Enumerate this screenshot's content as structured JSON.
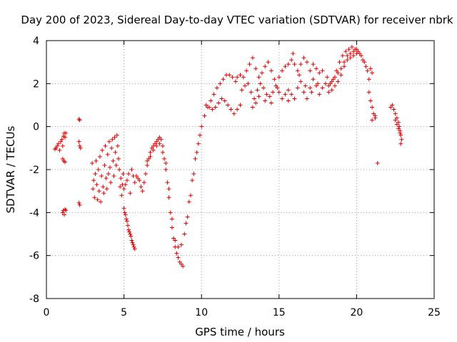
{
  "chart_data": {
    "type": "scatter",
    "title": "Day 200 of 2023, Sidereal Day-to-day VTEC variation (SDTVAR) for receiver nbrk",
    "xlabel": "GPS time / hours",
    "ylabel": "SDTVAR / TECUs",
    "xlim": [
      0,
      25
    ],
    "ylim": [
      -8,
      4
    ],
    "xticks": [
      0,
      5,
      10,
      15,
      20,
      25
    ],
    "yticks": [
      -8,
      -6,
      -4,
      -2,
      0,
      2,
      4
    ],
    "grid": true,
    "marker": "+",
    "series_color": "#e00000",
    "series": [
      {
        "name": "SDTVAR",
        "points": [
          [
            0.55,
            -1.05
          ],
          [
            0.62,
            -1.0
          ],
          [
            0.7,
            -0.9
          ],
          [
            0.78,
            -0.8
          ],
          [
            0.85,
            -1.1
          ],
          [
            0.92,
            -0.7
          ],
          [
            1.0,
            -0.6
          ],
          [
            1.05,
            -0.9
          ],
          [
            1.1,
            -0.45
          ],
          [
            1.15,
            -0.3
          ],
          [
            1.2,
            -0.5
          ],
          [
            1.25,
            -0.3
          ],
          [
            1.05,
            -1.5
          ],
          [
            1.12,
            -1.6
          ],
          [
            1.2,
            -1.65
          ],
          [
            1.05,
            -4.0
          ],
          [
            1.1,
            -3.9
          ],
          [
            1.15,
            -4.1
          ],
          [
            1.2,
            -3.85
          ],
          [
            1.25,
            -3.9
          ],
          [
            2.1,
            0.35
          ],
          [
            2.15,
            0.3
          ],
          [
            2.1,
            -0.7
          ],
          [
            2.15,
            -0.9
          ],
          [
            2.2,
            -1.0
          ],
          [
            2.1,
            -3.55
          ],
          [
            2.15,
            -3.65
          ],
          [
            2.95,
            -1.7
          ],
          [
            3.0,
            -2.9
          ],
          [
            3.05,
            -2.5
          ],
          [
            3.1,
            -3.3
          ],
          [
            3.15,
            -2.2
          ],
          [
            3.2,
            -1.6
          ],
          [
            3.25,
            -2.7
          ],
          [
            3.3,
            -3.4
          ],
          [
            3.35,
            -2.0
          ],
          [
            3.4,
            -3.0
          ],
          [
            3.45,
            -1.4
          ],
          [
            3.5,
            -3.5
          ],
          [
            3.55,
            -2.3
          ],
          [
            3.6,
            -1.1
          ],
          [
            3.65,
            -2.8
          ],
          [
            3.7,
            -3.1
          ],
          [
            3.75,
            -1.8
          ],
          [
            3.8,
            -0.9
          ],
          [
            3.85,
            -2.4
          ],
          [
            3.9,
            -2.9
          ],
          [
            3.95,
            -1.3
          ],
          [
            4.0,
            -2.2
          ],
          [
            4.05,
            -0.7
          ],
          [
            4.1,
            -1.9
          ],
          [
            4.15,
            -2.6
          ],
          [
            4.2,
            -1.0
          ],
          [
            4.25,
            -0.6
          ],
          [
            4.3,
            -1.6
          ],
          [
            4.35,
            -2.3
          ],
          [
            4.4,
            -0.5
          ],
          [
            4.45,
            -1.2
          ],
          [
            4.5,
            -1.8
          ],
          [
            4.55,
            -0.4
          ],
          [
            4.6,
            -0.9
          ],
          [
            4.65,
            -1.5
          ],
          [
            4.7,
            -2.0
          ],
          [
            4.75,
            -2.8
          ],
          [
            4.8,
            -2.4
          ],
          [
            4.85,
            -3.2
          ],
          [
            4.9,
            -2.7
          ],
          [
            4.95,
            -2.2
          ],
          [
            5.0,
            -3.8
          ],
          [
            5.05,
            -4.0
          ],
          [
            5.1,
            -4.1
          ],
          [
            5.15,
            -4.3
          ],
          [
            5.2,
            -4.4
          ],
          [
            5.25,
            -4.6
          ],
          [
            5.3,
            -4.8
          ],
          [
            5.35,
            -4.9
          ],
          [
            5.4,
            -5.0
          ],
          [
            5.45,
            -5.1
          ],
          [
            5.5,
            -5.3
          ],
          [
            5.55,
            -5.4
          ],
          [
            5.6,
            -5.5
          ],
          [
            5.65,
            -5.6
          ],
          [
            5.7,
            -5.7
          ],
          [
            5.0,
            -2.9
          ],
          [
            5.1,
            -2.7
          ],
          [
            5.2,
            -2.5
          ],
          [
            5.3,
            -2.2
          ],
          [
            5.4,
            -3.1
          ],
          [
            5.5,
            -2.0
          ],
          [
            5.6,
            -2.3
          ],
          [
            5.7,
            -2.6
          ],
          [
            5.8,
            -2.3
          ],
          [
            5.9,
            -2.4
          ],
          [
            6.0,
            -2.5
          ],
          [
            6.1,
            -2.8
          ],
          [
            6.2,
            -3.0
          ],
          [
            6.3,
            -2.6
          ],
          [
            6.4,
            -2.2
          ],
          [
            6.5,
            -1.8
          ],
          [
            6.6,
            -1.5
          ],
          [
            6.7,
            -1.2
          ],
          [
            6.8,
            -1.0
          ],
          [
            6.9,
            -0.9
          ],
          [
            7.0,
            -0.8
          ],
          [
            7.1,
            -0.7
          ],
          [
            7.2,
            -0.6
          ],
          [
            7.3,
            -0.5
          ],
          [
            7.4,
            -0.6
          ],
          [
            7.5,
            -0.9
          ],
          [
            6.5,
            -1.6
          ],
          [
            6.7,
            -1.4
          ],
          [
            6.9,
            -1.1
          ],
          [
            7.1,
            -0.9
          ],
          [
            7.3,
            -0.8
          ],
          [
            7.5,
            -1.2
          ],
          [
            7.6,
            -1.5
          ],
          [
            7.7,
            -2.0
          ],
          [
            7.8,
            -2.6
          ],
          [
            7.9,
            -3.3
          ],
          [
            8.0,
            -4.0
          ],
          [
            8.1,
            -4.7
          ],
          [
            8.2,
            -5.2
          ],
          [
            8.3,
            -5.6
          ],
          [
            8.4,
            -5.9
          ],
          [
            8.5,
            -6.1
          ],
          [
            8.6,
            -6.3
          ],
          [
            8.7,
            -6.4
          ],
          [
            8.8,
            -6.5
          ],
          [
            7.7,
            -1.7
          ],
          [
            7.9,
            -2.9
          ],
          [
            8.1,
            -4.3
          ],
          [
            8.3,
            -5.3
          ],
          [
            8.5,
            -5.6
          ],
          [
            8.7,
            -5.5
          ],
          [
            8.9,
            -5.0
          ],
          [
            9.1,
            -4.2
          ],
          [
            9.3,
            -3.2
          ],
          [
            9.5,
            -2.2
          ],
          [
            9.7,
            -1.2
          ],
          [
            9.9,
            -0.4
          ],
          [
            9.0,
            -4.5
          ],
          [
            9.2,
            -3.5
          ],
          [
            9.4,
            -2.5
          ],
          [
            9.6,
            -1.5
          ],
          [
            9.8,
            -0.8
          ],
          [
            10.0,
            0.0
          ],
          [
            10.2,
            0.5
          ],
          [
            10.4,
            0.9
          ],
          [
            10.6,
            1.2
          ],
          [
            10.8,
            1.5
          ],
          [
            11.0,
            1.8
          ],
          [
            11.2,
            2.0
          ],
          [
            11.4,
            2.2
          ],
          [
            11.6,
            2.4
          ],
          [
            11.8,
            2.4
          ],
          [
            12.0,
            2.3
          ],
          [
            12.2,
            2.1
          ],
          [
            10.3,
            1.0
          ],
          [
            10.5,
            0.9
          ],
          [
            10.7,
            0.8
          ],
          [
            10.9,
            0.9
          ],
          [
            11.1,
            1.1
          ],
          [
            11.3,
            1.3
          ],
          [
            11.5,
            1.2
          ],
          [
            11.7,
            1.0
          ],
          [
            11.9,
            0.8
          ],
          [
            12.1,
            0.6
          ],
          [
            12.3,
            0.8
          ],
          [
            12.5,
            1.0
          ],
          [
            12.3,
            2.3
          ],
          [
            12.5,
            2.4
          ],
          [
            12.7,
            2.3
          ],
          [
            12.9,
            2.6
          ],
          [
            13.1,
            2.9
          ],
          [
            13.3,
            3.2
          ],
          [
            13.5,
            2.7
          ],
          [
            13.7,
            2.3
          ],
          [
            13.9,
            2.5
          ],
          [
            14.1,
            2.8
          ],
          [
            14.3,
            3.0
          ],
          [
            14.5,
            2.6
          ],
          [
            14.7,
            2.2
          ],
          [
            14.9,
            1.8
          ],
          [
            12.6,
            1.7
          ],
          [
            12.8,
            1.9
          ],
          [
            13.0,
            2.0
          ],
          [
            13.2,
            1.6
          ],
          [
            13.4,
            1.3
          ],
          [
            13.6,
            1.7
          ],
          [
            13.8,
            2.0
          ],
          [
            14.0,
            1.8
          ],
          [
            14.2,
            1.5
          ],
          [
            14.4,
            1.4
          ],
          [
            14.6,
            1.6
          ],
          [
            14.8,
            1.9
          ],
          [
            15.0,
            1.6
          ],
          [
            15.2,
            1.3
          ],
          [
            15.4,
            1.5
          ],
          [
            15.6,
            1.2
          ],
          [
            13.3,
            0.9
          ],
          [
            13.5,
            1.1
          ],
          [
            13.7,
            1.4
          ],
          [
            14.1,
            1.2
          ],
          [
            14.5,
            1.1
          ],
          [
            15.0,
            2.3
          ],
          [
            15.2,
            2.6
          ],
          [
            15.4,
            2.8
          ],
          [
            15.6,
            2.9
          ],
          [
            15.8,
            3.1
          ],
          [
            16.0,
            2.9
          ],
          [
            16.2,
            2.6
          ],
          [
            16.4,
            2.9
          ],
          [
            16.6,
            3.2
          ],
          [
            16.8,
            3.0
          ],
          [
            17.0,
            2.6
          ],
          [
            17.2,
            2.9
          ],
          [
            17.4,
            2.7
          ],
          [
            17.6,
            2.5
          ],
          [
            17.8,
            2.6
          ],
          [
            15.9,
            3.4
          ],
          [
            16.3,
            2.4
          ],
          [
            16.7,
            1.9
          ],
          [
            17.1,
            1.6
          ],
          [
            17.5,
            2.0
          ],
          [
            15.6,
            1.7
          ],
          [
            15.8,
            1.5
          ],
          [
            16.0,
            1.3
          ],
          [
            16.2,
            1.8
          ],
          [
            16.4,
            2.1
          ],
          [
            16.6,
            1.6
          ],
          [
            16.8,
            1.3
          ],
          [
            17.0,
            1.8
          ],
          [
            17.2,
            2.2
          ],
          [
            17.4,
            1.9
          ],
          [
            17.6,
            1.5
          ],
          [
            17.8,
            1.8
          ],
          [
            18.0,
            2.0
          ],
          [
            18.2,
            1.9
          ],
          [
            18.4,
            2.1
          ],
          [
            18.6,
            2.3
          ],
          [
            18.8,
            2.5
          ],
          [
            19.0,
            2.7
          ],
          [
            19.2,
            3.0
          ],
          [
            19.4,
            3.3
          ],
          [
            19.6,
            3.4
          ],
          [
            19.8,
            3.5
          ],
          [
            20.0,
            3.6
          ],
          [
            20.2,
            3.4
          ],
          [
            20.4,
            3.1
          ],
          [
            20.6,
            2.8
          ],
          [
            20.8,
            2.2
          ],
          [
            18.1,
            2.3
          ],
          [
            18.3,
            2.0
          ],
          [
            18.5,
            2.2
          ],
          [
            18.7,
            2.6
          ],
          [
            18.9,
            3.0
          ],
          [
            19.1,
            3.3
          ],
          [
            19.3,
            3.5
          ],
          [
            19.5,
            3.6
          ],
          [
            19.7,
            3.7
          ],
          [
            19.9,
            3.6
          ],
          [
            20.1,
            3.5
          ],
          [
            20.3,
            3.3
          ],
          [
            20.5,
            3.0
          ],
          [
            20.7,
            2.6
          ],
          [
            18.2,
            1.6
          ],
          [
            18.4,
            1.7
          ],
          [
            18.6,
            1.9
          ],
          [
            18.8,
            2.1
          ],
          [
            19.0,
            2.4
          ],
          [
            19.2,
            2.8
          ],
          [
            19.4,
            3.1
          ],
          [
            19.6,
            3.2
          ],
          [
            19.8,
            3.3
          ],
          [
            20.0,
            3.4
          ],
          [
            20.9,
            2.7
          ],
          [
            21.0,
            2.5
          ],
          [
            20.8,
            1.6
          ],
          [
            20.9,
            1.2
          ],
          [
            21.0,
            0.9
          ],
          [
            21.1,
            0.6
          ],
          [
            21.2,
            0.5
          ],
          [
            21.0,
            0.3
          ],
          [
            21.2,
            0.4
          ],
          [
            21.35,
            -1.7
          ],
          [
            22.2,
            0.9
          ],
          [
            22.3,
            1.0
          ],
          [
            22.4,
            0.8
          ],
          [
            22.5,
            0.6
          ],
          [
            22.6,
            0.4
          ],
          [
            22.7,
            0.2
          ],
          [
            22.75,
            0.0
          ],
          [
            22.8,
            -0.2
          ],
          [
            22.85,
            -0.4
          ],
          [
            22.9,
            -0.6
          ],
          [
            22.5,
            0.3
          ],
          [
            22.6,
            0.1
          ],
          [
            22.7,
            -0.1
          ],
          [
            22.8,
            -0.3
          ],
          [
            22.85,
            -0.8
          ]
        ]
      }
    ]
  }
}
